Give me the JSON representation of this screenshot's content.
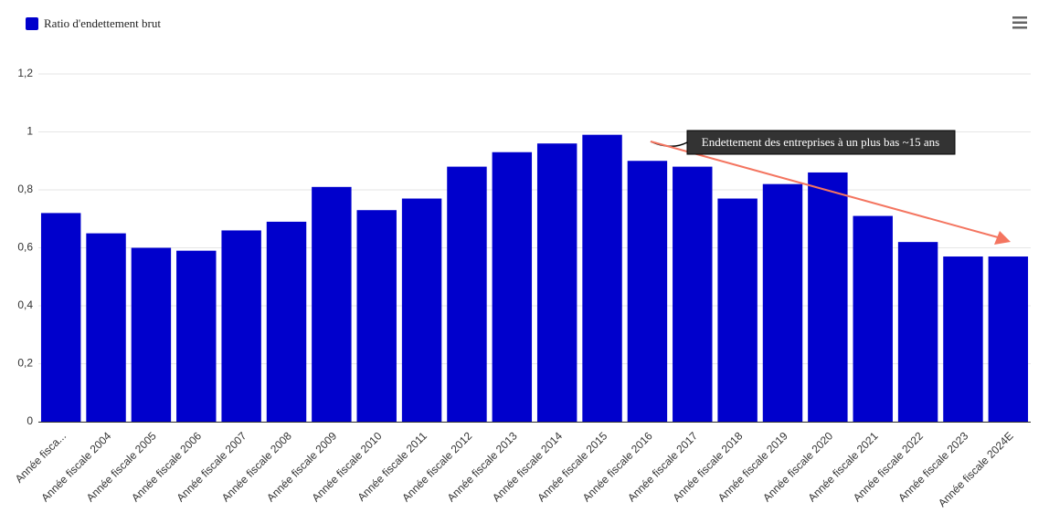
{
  "chart_data": {
    "type": "bar",
    "legend_position": "top-left",
    "series": [
      {
        "name": "Ratio d'endettement brut",
        "color": "#0000cc",
        "values": [
          0.72,
          0.65,
          0.6,
          0.59,
          0.66,
          0.69,
          0.81,
          0.73,
          0.77,
          0.88,
          0.93,
          0.96,
          0.99,
          0.9,
          0.88,
          0.77,
          0.82,
          0.86,
          0.71,
          0.62,
          0.57,
          0.57
        ]
      }
    ],
    "categories": [
      "Année fisca...",
      "Année fiscale 2004",
      "Année fiscale 2005",
      "Année fiscale 2006",
      "Année fiscale 2007",
      "Année fiscale 2008",
      "Année fiscale 2009",
      "Année fiscale 2010",
      "Année fiscale 2011",
      "Année fiscale 2012",
      "Année fiscale 2013",
      "Année fiscale 2014",
      "Année fiscale 2015",
      "Année fiscale 2016",
      "Année fiscale 2017",
      "Année fiscale 2018",
      "Année fiscale 2019",
      "Année fiscale 2020",
      "Année fiscale 2021",
      "Année fiscale 2022",
      "Année fiscale 2023",
      "Année fiscale 2024E"
    ],
    "ylim": [
      0,
      1.2
    ],
    "yticks": [
      0,
      {
        "value": 0.2,
        "label": "0,2"
      },
      {
        "value": 0.4,
        "label": "0,4"
      },
      {
        "value": 0.6,
        "label": "0,6"
      },
      {
        "value": 0.8,
        "label": "0,8"
      },
      1,
      {
        "value": 1.2,
        "label": "1,2"
      }
    ],
    "grid": true,
    "annotation": "Endettement des entreprises à un plus bas ~15 ans"
  }
}
